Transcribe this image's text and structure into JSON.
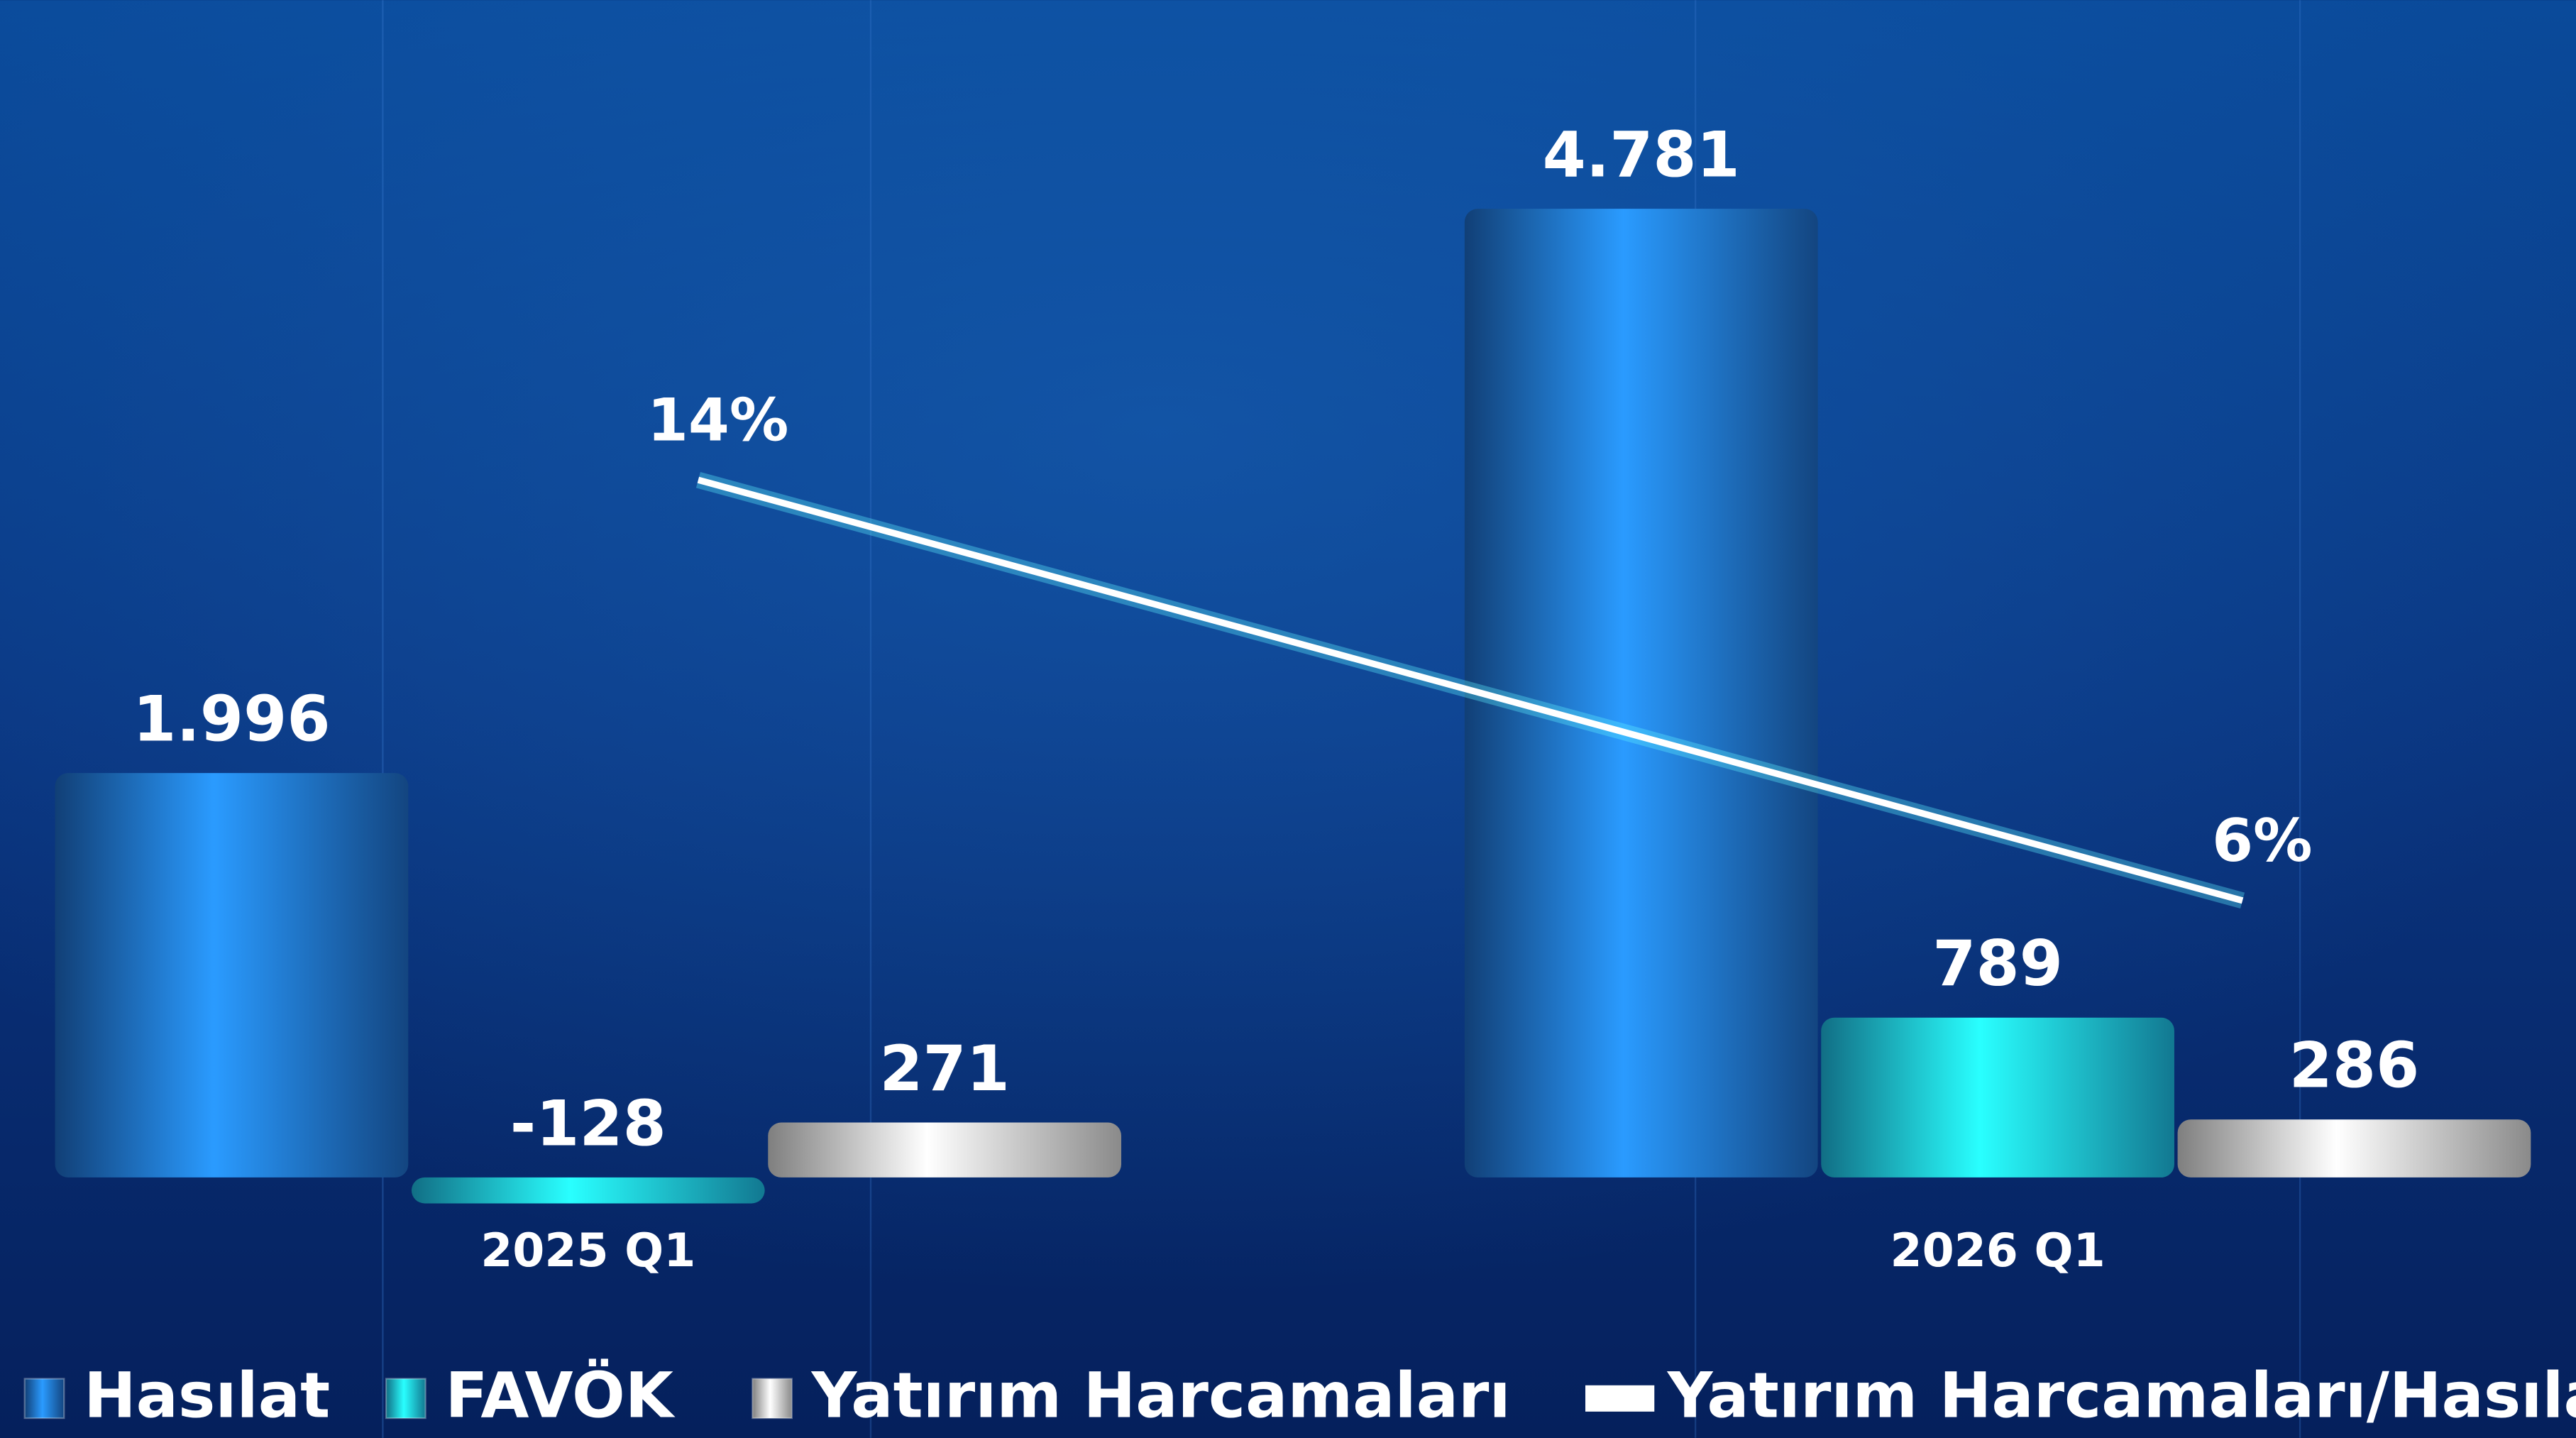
{
  "chart_data": {
    "type": "bar",
    "categories": [
      "2025 Q1",
      "2026 Q1"
    ],
    "series": [
      {
        "name": "Hasılat",
        "color": "#1f73d6",
        "values": [
          1996,
          4781
        ],
        "value_labels": [
          "1.996",
          "4.781"
        ]
      },
      {
        "name": "FAVÖK",
        "color": "#1ec8f2",
        "values": [
          -128,
          789
        ]
      },
      {
        "name": "Yatırım Harcamaları",
        "color": "#e6e6e6",
        "values": [
          271,
          286
        ]
      },
      {
        "name": "Yatırım Harcamaları/Hasılat",
        "type": "line",
        "axis": "y2",
        "color": "#ffffff",
        "values": [
          14,
          6
        ],
        "value_labels": [
          "14%",
          "6%"
        ]
      }
    ],
    "ylim": [
      -150,
      5000
    ],
    "y2lim": [
      0,
      20
    ],
    "legend": "bottom"
  }
}
